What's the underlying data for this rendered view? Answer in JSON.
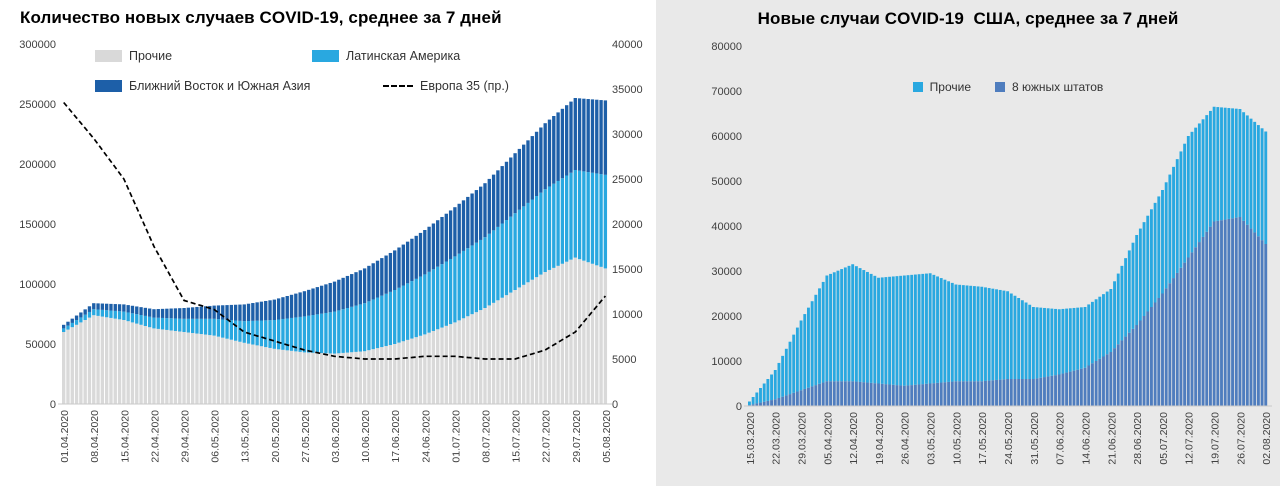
{
  "chart_data": [
    {
      "title": "Количество новых случаев COVID-19, среднее за 7 дней",
      "type": "bar",
      "subtype": "stacked daily bars with secondary-axis dashed line",
      "background": "#ffffff",
      "bar_frequency": "daily",
      "legend_position": "inside-top-left",
      "grid": false,
      "x_tick_labels": [
        "01.04.2020",
        "08.04.2020",
        "15.04.2020",
        "22.04.2020",
        "29.04.2020",
        "06.05.2020",
        "13.05.2020",
        "20.05.2020",
        "27.05.2020",
        "03.06.2020",
        "10.06.2020",
        "17.06.2020",
        "24.06.2020",
        "01.07.2020",
        "08.07.2020",
        "15.07.2020",
        "22.07.2020",
        "29.07.2020",
        "05.08.2020"
      ],
      "y_axis_left": {
        "min": 0,
        "max": 300000,
        "step": 50000,
        "tick_labels": [
          "0",
          "50000",
          "100000",
          "150000",
          "200000",
          "250000",
          "300000"
        ]
      },
      "y_axis_right": {
        "min": 0,
        "max": 40000,
        "step": 5000,
        "tick_labels": [
          "0",
          "5000",
          "10000",
          "15000",
          "20000",
          "25000",
          "30000",
          "35000",
          "40000"
        ]
      },
      "series": [
        {
          "name": "Прочие",
          "color": "#d9d9d9",
          "axis": "left",
          "values_at_ticks": [
            60000,
            74000,
            70000,
            63000,
            60000,
            57000,
            51000,
            46000,
            43000,
            42000,
            44000,
            50000,
            58000,
            68000,
            80000,
            95000,
            110000,
            122000,
            113000
          ]
        },
        {
          "name": "Латинская Америка",
          "color": "#29a8e0",
          "axis": "left",
          "values_at_ticks": [
            3000,
            5000,
            7000,
            9000,
            11000,
            14000,
            18000,
            24000,
            30000,
            35000,
            40000,
            45000,
            50000,
            55000,
            59000,
            64000,
            69000,
            73000,
            78000
          ]
        },
        {
          "name": "Ближний Восток и Южная Азия",
          "color": "#1d5fa8",
          "axis": "left",
          "values_at_ticks": [
            3000,
            5000,
            6000,
            7000,
            9000,
            11000,
            14000,
            17000,
            21000,
            25000,
            29000,
            33000,
            37000,
            41000,
            45000,
            50000,
            55000,
            60000,
            62000
          ]
        }
      ],
      "line_series": {
        "name": "Европа 35 (пр.)",
        "color": "#000000",
        "style": "dashed",
        "axis": "right",
        "values_at_ticks": [
          33500,
          29500,
          25000,
          17500,
          11500,
          10500,
          8000,
          7000,
          6000,
          5300,
          5000,
          5000,
          5300,
          5300,
          5000,
          5000,
          6000,
          8000,
          12000
        ]
      },
      "legend": [
        {
          "label": "Прочие",
          "marker": "square",
          "color": "#d9d9d9"
        },
        {
          "label": "Латинская Америка",
          "marker": "square",
          "color": "#29a8e0"
        },
        {
          "label": "Ближний Восток и Южная Азия",
          "marker": "square",
          "color": "#1d5fa8"
        },
        {
          "label": "Европа 35 (пр.)",
          "marker": "dashed-line",
          "color": "#000000"
        }
      ]
    },
    {
      "title": "Новые случаи COVID-19  США, среднее за 7 дней",
      "type": "bar",
      "subtype": "stacked daily bars",
      "background": "#e9e9e9",
      "bar_frequency": "daily",
      "legend_position": "inside-top-center",
      "grid": false,
      "x_tick_labels": [
        "15.03.2020",
        "22.03.2020",
        "29.03.2020",
        "05.04.2020",
        "12.04.2020",
        "19.04.2020",
        "26.04.2020",
        "03.05.2020",
        "10.05.2020",
        "17.05.2020",
        "24.05.2020",
        "31.05.2020",
        "07.06.2020",
        "14.06.2020",
        "21.06.2020",
        "28.06.2020",
        "05.07.2020",
        "12.07.2020",
        "19.07.2020",
        "26.07.2020",
        "02.08.2020"
      ],
      "y_axis_left": {
        "min": 0,
        "max": 80000,
        "step": 10000,
        "tick_labels": [
          "0",
          "10000",
          "20000",
          "30000",
          "40000",
          "50000",
          "60000",
          "70000",
          "80000"
        ]
      },
      "series": [
        {
          "name": "8 южных штатов",
          "color": "#4f7dbe",
          "axis": "left",
          "values_at_ticks": [
            200,
            1500,
            3500,
            5500,
            5500,
            5000,
            4500,
            5000,
            5500,
            5500,
            6000,
            6000,
            7000,
            8500,
            12000,
            18000,
            25000,
            33000,
            41000,
            42000,
            36000
          ]
        },
        {
          "name": "Прочие",
          "color": "#29a8e0",
          "axis": "left",
          "values_at_ticks": [
            800,
            6500,
            15500,
            23500,
            26000,
            23500,
            24500,
            24500,
            21500,
            21000,
            19500,
            16000,
            14500,
            13500,
            14000,
            20000,
            23000,
            27000,
            25500,
            24000,
            25000
          ]
        }
      ],
      "legend": [
        {
          "label": "Прочие",
          "marker": "square",
          "color": "#29a8e0"
        },
        {
          "label": "8 южных штатов",
          "marker": "square",
          "color": "#4f7dbe"
        }
      ]
    }
  ]
}
